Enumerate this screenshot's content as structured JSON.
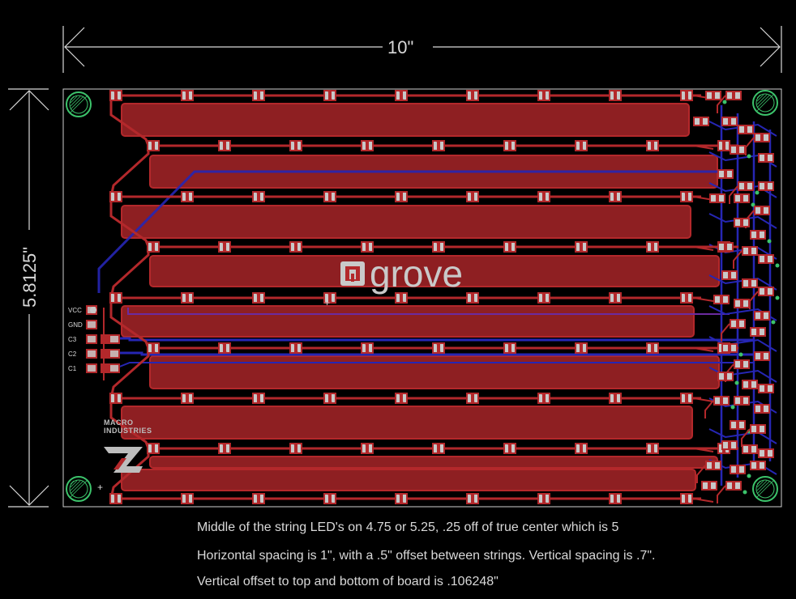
{
  "dimensions": {
    "width_label": "10\"",
    "height_label": "5.8125\""
  },
  "logo": {
    "text": "grove",
    "company_line1": "MACRO",
    "company_line2": "INDUSTRIES"
  },
  "connector_pins": [
    "VCC",
    "GND",
    "C3",
    "C2",
    "C1"
  ],
  "marks": {
    "plus_left": "+",
    "plus_mid": "+"
  },
  "notes": [
    "Middle of the string LED's on 4.75 or 5.25, .25 off of true center which is 5",
    "Horizontal spacing is 1\", with a .5\" offset between strings. Vertical spacing is .7\".",
    "Vertical offset to top and bottom of board is .106248\""
  ],
  "led_strings": [
    {
      "row": 1,
      "count": 9
    },
    {
      "row": 2,
      "count": 9
    },
    {
      "row": 3,
      "count": 9
    },
    {
      "row": 4,
      "count": 9
    },
    {
      "row": 5,
      "count": 9
    },
    {
      "row": 6,
      "count": 9
    },
    {
      "row": 7,
      "count": 9
    },
    {
      "row": 8,
      "count": 9
    },
    {
      "row": 9,
      "count": 9
    }
  ],
  "colors": {
    "background": "#000000",
    "top_copper": "#b3282b",
    "top_copper_fill": "#8e1f22",
    "bottom_copper": "#2626b4",
    "pad": "#c8c8c8",
    "via": "#3cc36b",
    "dimension": "#d9d9d9"
  }
}
